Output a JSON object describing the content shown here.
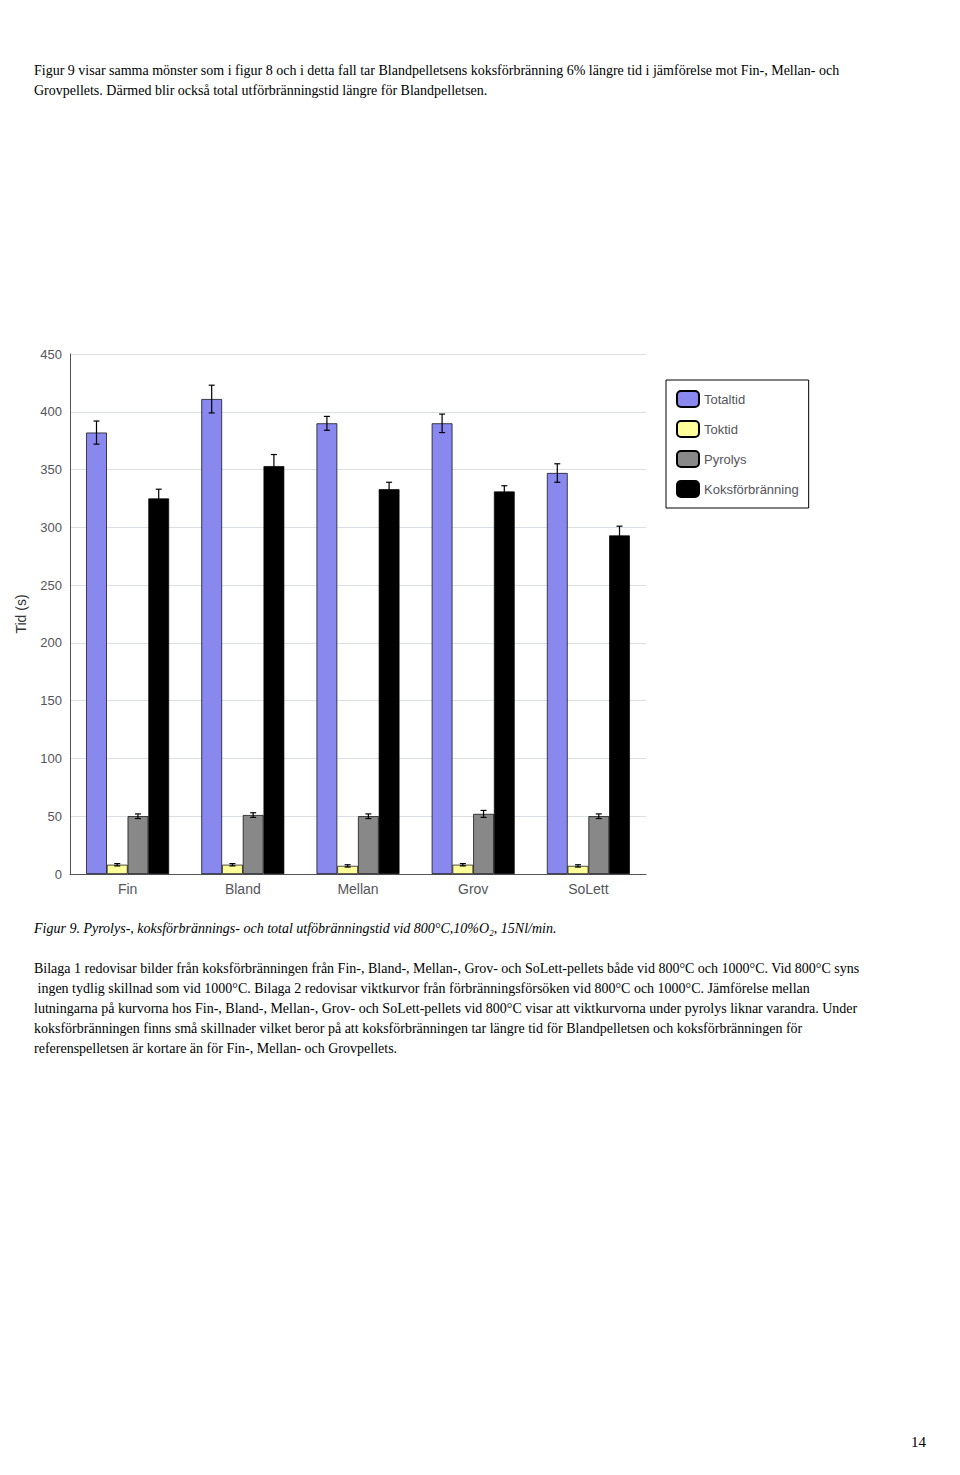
{
  "chart_data": {
    "type": "bar",
    "annotations": [
      "Figur 9 visar samma mönster som i figur 8 och i detta fall tar Blandpelletsens koksförbränning 6% längre tid i jämförelse mot Fin-, Mellan- och Grovpellets. Därmed blir också total utförbränningstid längre för Blandpelletsen.",
      "Figur 9. Pyrolys-, koksförbrännings- och total utföbränningstid vid 800°C,10%O₂, 15Nl/min.",
      "Bilaga 1 redovisar bilder från koksförbränningen från Fin-, Bland-, Mellan-, Grov- och SoLett-pellets både vid 800°C och 1000°C. Vid 800°C syns ingen tydlig skillnad som vid 1000°C. Bilaga 2 redovisar viktkurvor från förbränningsförsöken vid 800°C och 1000°C. Jämförelse mellan lutningarna på kurvorna hos Fin-, Bland-, Mellan-, Grov- och SoLett-pellets vid 800°C visar att viktkurvorna under pyrolys liknar varandra. Under koksförbränningen finns små skillnader vilket beror på att koksförbränningen tar längre tid för Blandpelletsen och koksförbränningen för referenspelletsen är kortare än för Fin-, Mellan- och Grovpellets.",
      "14"
    ],
    "ylabel": "Tid (s)",
    "categories": [
      "Fin",
      "Bland",
      "Mellan",
      "Grov",
      "SoLett"
    ],
    "series": [
      {
        "name": "Totaltid",
        "color": "#8888ee",
        "values": [
          382,
          411,
          390,
          390,
          347
        ],
        "errors": [
          10,
          12,
          6,
          8,
          8
        ]
      },
      {
        "name": "Toktid",
        "color": "#ffff99",
        "values": [
          8,
          8,
          7,
          8,
          7
        ],
        "errors": [
          1,
          1,
          1,
          1,
          1
        ]
      },
      {
        "name": "Pyrolys",
        "color": "#888888",
        "values": [
          50,
          51,
          50,
          52,
          50
        ],
        "errors": [
          2,
          2,
          2,
          3,
          2
        ]
      },
      {
        "name": "Koksförbränning",
        "color": "#000000",
        "values": [
          325,
          353,
          333,
          331,
          293
        ],
        "errors": [
          8,
          10,
          6,
          5,
          8
        ]
      }
    ],
    "ylim": [
      0,
      450
    ],
    "yticks": [
      0,
      50,
      100,
      150,
      200,
      250,
      300,
      350,
      400,
      450
    ],
    "grid": true,
    "legend": "upper right"
  }
}
